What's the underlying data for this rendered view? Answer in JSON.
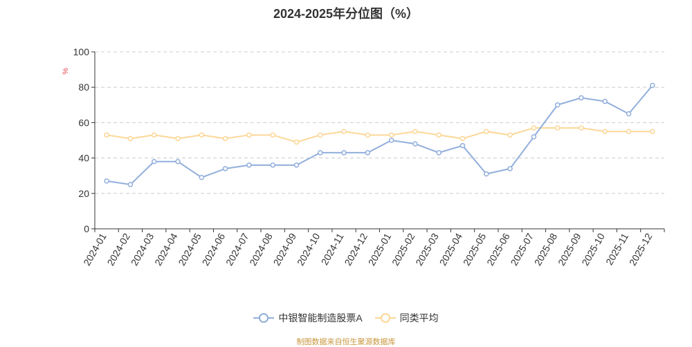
{
  "source_note": "制图数据来自恒生聚源数据库",
  "colors": {
    "series1": "#91aedb",
    "series2": "#fcd796",
    "unit": "#e0474c",
    "grid": "#cccccc",
    "axis": "#333333"
  },
  "chart_data": {
    "type": "line",
    "title": "2024-2025年分位图（%）",
    "ylabel": "%",
    "ylim": [
      0,
      100
    ],
    "yticks": [
      0,
      20,
      40,
      60,
      80,
      100
    ],
    "grid": true,
    "legend_position": "bottom",
    "categories": [
      "2024-01",
      "2024-02",
      "2024-03",
      "2024-04",
      "2024-05",
      "2024-06",
      "2024-07",
      "2024-08",
      "2024-09",
      "2024-10",
      "2024-11",
      "2024-12",
      "2025-01",
      "2025-02",
      "2025-03",
      "2025-04",
      "2025-05",
      "2025-06",
      "2025-07",
      "2025-08",
      "2025-09",
      "2025-10",
      "2025-11",
      "2025-12"
    ],
    "series": [
      {
        "name": "中银智能制造股票A",
        "values": [
          27,
          25,
          38,
          38,
          29,
          34,
          36,
          36,
          36,
          43,
          43,
          43,
          50,
          48,
          43,
          47,
          31,
          34,
          52,
          70,
          74,
          72,
          65,
          81
        ]
      },
      {
        "name": "同类平均",
        "values": [
          53,
          51,
          53,
          51,
          53,
          51,
          53,
          53,
          49,
          53,
          55,
          53,
          53,
          55,
          53,
          51,
          55,
          53,
          57,
          57,
          57,
          55,
          55,
          55
        ]
      }
    ]
  }
}
